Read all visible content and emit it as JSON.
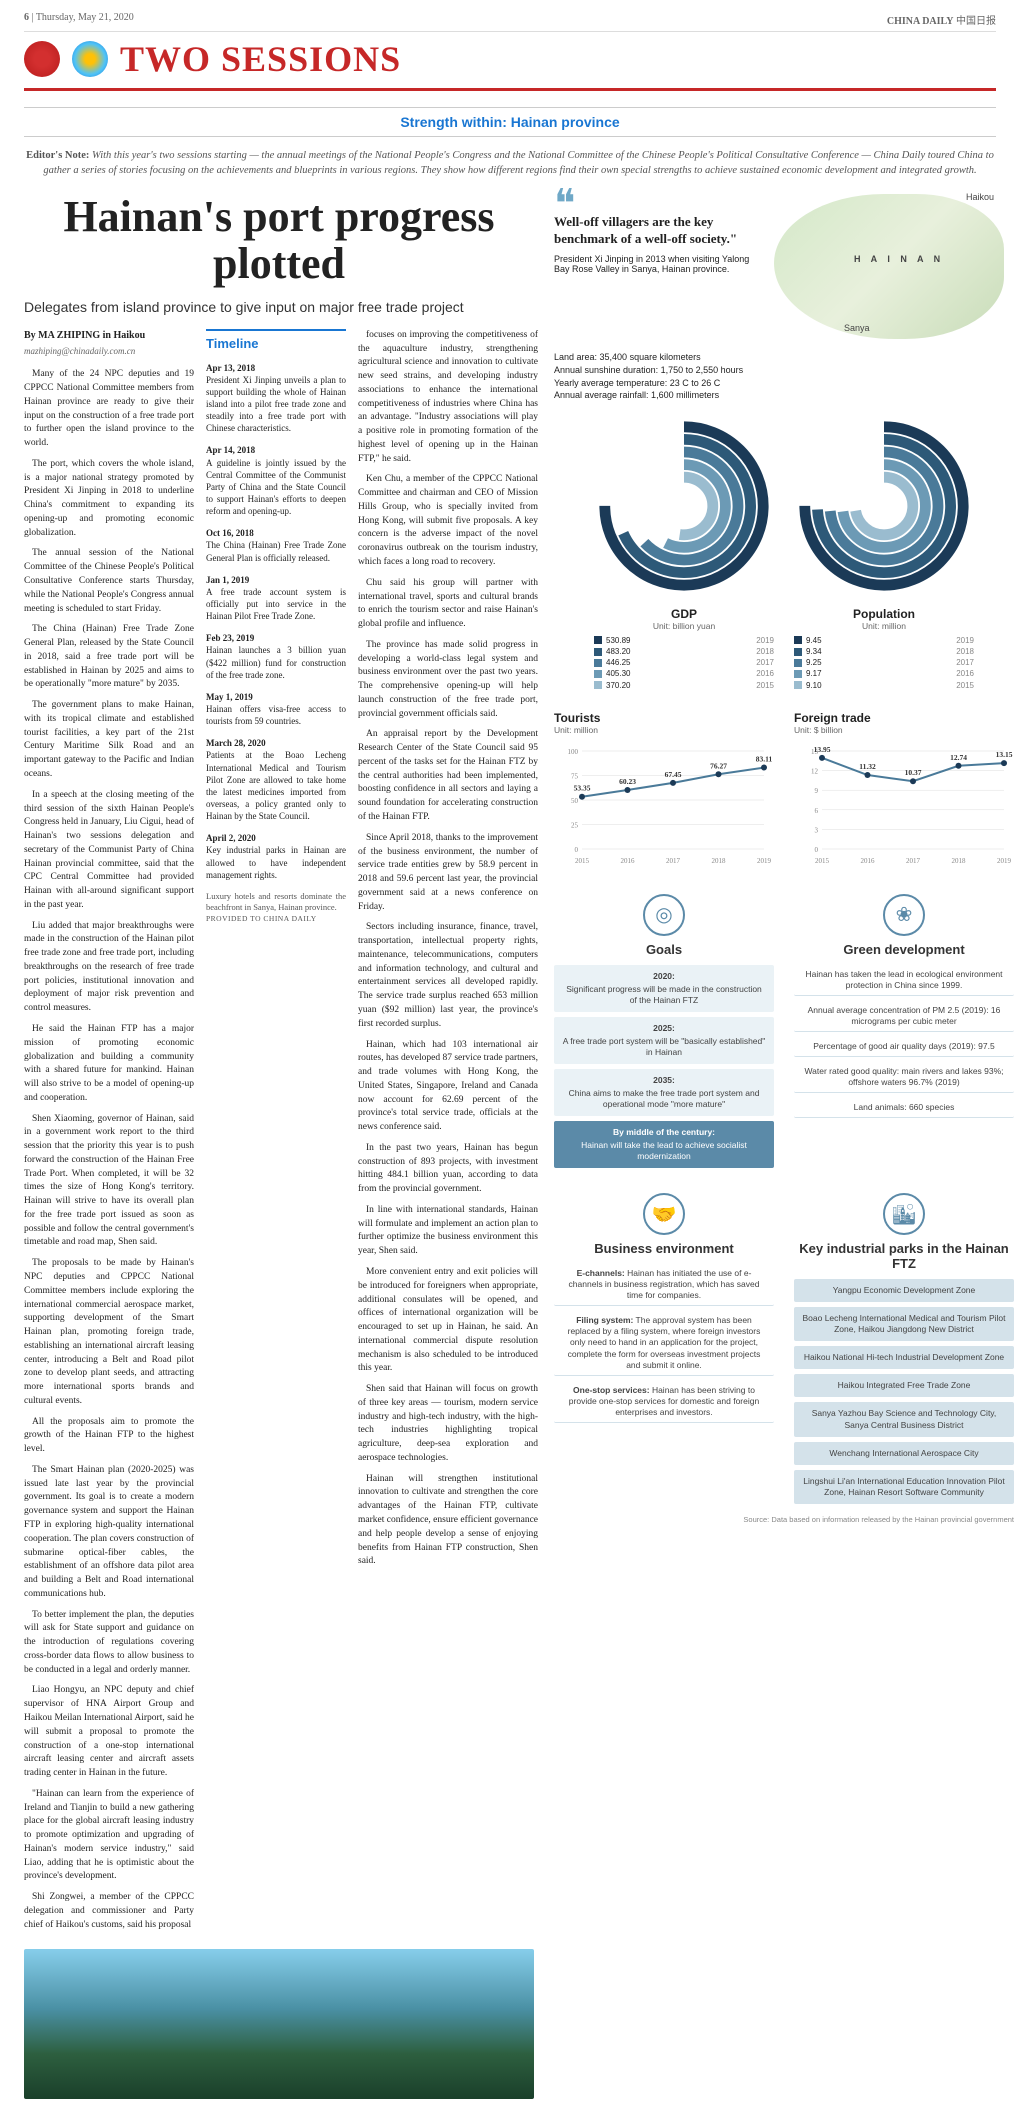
{
  "page_number": "6",
  "date": "Thursday, May 21, 2020",
  "publication": "CHINA DAILY",
  "pub_chinese": "中国日报",
  "section": "TWO SESSIONS",
  "kicker": "Strength within: Hainan province",
  "editors_note_label": "Editor's Note:",
  "editors_note": "With this year's two sessions starting — the annual meetings of the National People's Congress and the National Committee of the Chinese People's Political Consultative Conference — China Daily toured China to gather a series of stories focusing on the achievements and blueprints in various regions. They show how different regions find their own special strengths to achieve sustained economic development and integrated growth.",
  "headline": "Hainan's port progress plotted",
  "subhead": "Delegates from island province to give input on major free trade project",
  "byline": "By MA ZHIPING in Haikou",
  "byline_email": "mazhiping@chinadaily.com.cn",
  "body_col1": [
    "Many of the 24 NPC deputies and 19 CPPCC National Committee members from Hainan province are ready to give their input on the construction of a free trade port to further open the island province to the world.",
    "The port, which covers the whole island, is a major national strategy promoted by President Xi Jinping in 2018 to underline China's commitment to expanding its opening-up and promoting economic globalization.",
    "The annual session of the National Committee of the Chinese People's Political Consultative Conference starts Thursday, while the National People's Congress annual meeting is scheduled to start Friday.",
    "The China (Hainan) Free Trade Zone General Plan, released by the State Council in 2018, said a free trade port will be established in Hainan by 2025 and aims to be operationally \"more mature\" by 2035.",
    "The government plans to make Hainan, with its tropical climate and established tourist facilities, a key part of the 21st Century Maritime Silk Road and an important gateway to the Pacific and Indian oceans.",
    "In a speech at the closing meeting of the third session of the sixth Hainan People's Congress held in January, Liu Cigui, head of Hainan's two sessions delegation and secretary of the Communist Party of China Hainan provincial committee, said that the CPC Central Committee had provided Hainan with all-around significant support in the past year.",
    "Liu added that major breakthroughs were made in the construction of the Hainan pilot free trade zone and free trade port, including breakthroughs on the research of free trade port policies, institutional innovation and deployment of major risk prevention and control measures.",
    "He said the Hainan FTP has a major mission of promoting economic globalization and building a community with a shared future for mankind. Hainan will also strive to be a model of opening-up and cooperation.",
    "Shen Xiaoming, governor of Hainan, said in a government work report to the third session that the priority this year is to push forward the construction of the Hainan Free Trade Port. When completed, it will be 32 times the size of Hong Kong's territory. Hainan will strive to have its overall plan for the free trade port issued as soon as possible and follow the central government's timetable and road map, Shen said.",
    "The proposals to be made by Hainan's NPC deputies and CPPCC National Committee members include exploring the international commercial aerospace market, supporting development of the Smart Hainan plan, promoting foreign trade, establishing an international aircraft leasing center, introducing a Belt and Road pilot zone to develop plant seeds, and attracting more international sports brands and cultural events.",
    "All the proposals aim to promote the growth of the Hainan FTP to the highest level.",
    "The Smart Hainan plan (2020-2025) was issued late last year by the provincial government. Its goal is to create a modern governance system and support the Hainan FTP in exploring high-quality international cooperation. The plan covers construction of submarine optical-fiber cables, the establishment of an offshore data pilot area and building a Belt and Road international communications hub.",
    "To better implement the plan, the deputies will ask for State support and guidance on the introduction of regulations covering cross-border data flows to allow business to be conducted in a legal and orderly manner.",
    "Liao Hongyu, an NPC deputy and chief supervisor of HNA Airport Group and Haikou Meilan International Airport, said he will submit a proposal to promote the construction of a one-stop international aircraft leasing center and aircraft assets trading center in Hainan in the future.",
    "\"Hainan can learn from the experience of Ireland and Tianjin to build a new gathering place for the global aircraft leasing industry to promote optimization and upgrading of Hainan's modern service industry,\" said Liao, adding that he is optimistic about the province's development.",
    "Shi Zongwei, a member of the CPPCC delegation and commissioner and Party chief of Haikou's customs, said his proposal"
  ],
  "timeline_head": "Timeline",
  "timeline": [
    {
      "date": "Apr 13, 2018",
      "text": "President Xi Jinping unveils a plan to support building the whole of Hainan island into a pilot free trade zone and steadily into a free trade port with Chinese characteristics."
    },
    {
      "date": "Apr 14, 2018",
      "text": "A guideline is jointly issued by the Central Committee of the Communist Party of China and the State Council to support Hainan's efforts to deepen reform and opening-up."
    },
    {
      "date": "Oct 16, 2018",
      "text": "The China (Hainan) Free Trade Zone General Plan is officially released."
    },
    {
      "date": "Jan 1, 2019",
      "text": "A free trade account system is officially put into service in the Hainan Pilot Free Trade Zone."
    },
    {
      "date": "Feb 23, 2019",
      "text": "Hainan launches a 3 billion yuan ($422 million) fund for construction of the free trade zone."
    },
    {
      "date": "May 1, 2019",
      "text": "Hainan offers visa-free access to tourists from 59 countries."
    },
    {
      "date": "March 28, 2020",
      "text": "Patients at the Boao Lecheng International Medical and Tourism Pilot Zone are allowed to take home the latest medicines imported from overseas, a policy granted only to Hainan by the State Council."
    },
    {
      "date": "April 2, 2020",
      "text": "Key industrial parks in Hainan are allowed to have independent management rights."
    }
  ],
  "body_col3": [
    "focuses on improving the competitiveness of the aquaculture industry, strengthening agricultural science and innovation to cultivate new seed strains, and developing industry associations to enhance the international competitiveness of industries where China has an advantage. \"Industry associations will play a positive role in promoting formation of the highest level of opening up in the Hainan FTP,\" he said.",
    "Ken Chu, a member of the CPPCC National Committee and chairman and CEO of Mission Hills Group, who is specially invited from Hong Kong, will submit five proposals. A key concern is the adverse impact of the novel coronavirus outbreak on the tourism industry, which faces a long road to recovery.",
    "Chu said his group will partner with international travel, sports and cultural brands to enrich the tourism sector and raise Hainan's global profile and influence.",
    "The province has made solid progress in developing a world-class legal system and business environment over the past two years. The comprehensive opening-up will help launch construction of the free trade port, provincial government officials said.",
    "An appraisal report by the Development Research Center of the State Council said 95 percent of the tasks set for the Hainan FTZ by the central authorities had been implemented, boosting confidence in all sectors and laying a sound foundation for accelerating construction of the Hainan FTP.",
    "Since April 2018, thanks to the improvement of the business environment, the number of service trade entities grew by 58.9 percent in 2018 and 59.6 percent last year, the provincial government said at a news conference on Friday.",
    "Sectors including insurance, finance, travel, transportation, intellectual property rights, maintenance, telecommunications, computers and information technology, and cultural and entertainment services all developed rapidly. The service trade surplus reached 653 million yuan ($92 million) last year, the province's first recorded surplus.",
    "Hainan, which had 103 international air routes, has developed 87 service trade partners, and trade volumes with Hong Kong, the United States, Singapore, Ireland and Canada now account for 62.69 percent of the province's total service trade, officials at the news conference said.",
    "In the past two years, Hainan has begun construction of 893 projects, with investment hitting 484.1 billion yuan, according to data from the provincial government.",
    "In line with international standards, Hainan will formulate and implement an action plan to further optimize the business environment this year, Shen said.",
    "More convenient entry and exit policies will be introduced for foreigners when appropriate, additional consulates will be opened, and offices of international organization will be encouraged to set up in Hainan, he said. An international commercial dispute resolution mechanism is also scheduled to be introduced this year.",
    "Shen said that Hainan will focus on growth of three key areas — tourism, modern service industry and high-tech industry, with the high-tech industries highlighting tropical agriculture, deep-sea exploration and aerospace technologies.",
    "Hainan will strengthen institutional innovation to cultivate and strengthen the core advantages of the Hainan FTP, cultivate market confidence, ensure efficient governance and help people develop a sense of enjoying benefits from Hainan FTP construction, Shen said."
  ],
  "photo_caption": "Luxury hotels and resorts dominate the beachfront in Sanya, Hainan province.",
  "photo_credit": "PROVIDED TO CHINA DAILY",
  "quote": {
    "text": "Well-off villagers are the key benchmark of a well-off society.\"",
    "attr": "President Xi Jinping in 2013 when visiting Yalong Bay Rose Valley in Sanya, Hainan province."
  },
  "map": {
    "city1": "Haikou",
    "region": "H A I N A N",
    "city2": "Sanya"
  },
  "map_stats": [
    "Land area: 35,400 square kilometers",
    "Annual sunshine duration: 1,750 to 2,550 hours",
    "Yearly average temperature: 23 C to 26 C",
    "Annual average rainfall: 1,600 millimeters"
  ],
  "gdp": {
    "title": "GDP",
    "unit": "Unit: billion yuan",
    "years": [
      "2019",
      "2018",
      "2017",
      "2016",
      "2015"
    ],
    "values": [
      "530.89",
      "483.20",
      "446.25",
      "405.30",
      "370.20"
    ],
    "colors": [
      "#1b3a57",
      "#2d5978",
      "#4a7a99",
      "#6c9ab5",
      "#9abccf"
    ]
  },
  "pop": {
    "title": "Population",
    "unit": "Unit: million",
    "years": [
      "2019",
      "2018",
      "2017",
      "2016",
      "2015"
    ],
    "values": [
      "9.45",
      "9.34",
      "9.25",
      "9.17",
      "9.10"
    ],
    "colors": [
      "#1b3a57",
      "#2d5978",
      "#4a7a99",
      "#6c9ab5",
      "#9abccf"
    ]
  },
  "tourists": {
    "title": "Tourists",
    "unit": "Unit: million",
    "x": [
      "2015",
      "2016",
      "2017",
      "2018",
      "2019"
    ],
    "y": [
      53.35,
      60.23,
      67.45,
      76.27,
      83.11
    ],
    "ymax": 100,
    "ystep": 25,
    "line_color": "#4a7a99",
    "point_color": "#1b3a57"
  },
  "trade": {
    "title": "Foreign trade",
    "unit": "Unit: $ billion",
    "x": [
      "2015",
      "2016",
      "2017",
      "2018",
      "2019"
    ],
    "y": [
      13.95,
      11.32,
      10.37,
      12.74,
      13.15
    ],
    "ymax": 15,
    "ystep": 3,
    "line_color": "#4a7a99",
    "point_color": "#1b3a57"
  },
  "goals": {
    "title": "Goals",
    "items": [
      {
        "b": "2020:",
        "t": "Significant progress will be made in the construction of the Hainan FTZ"
      },
      {
        "b": "2025:",
        "t": "A free trade port system will be \"basically established\" in Hainan"
      },
      {
        "b": "2035:",
        "t": "China aims to make the free trade port system and operational mode \"more mature\""
      },
      {
        "b": "By middle of the century:",
        "t": "Hainan will take the lead to achieve socialist modernization"
      }
    ]
  },
  "green": {
    "title": "Green development",
    "items": [
      "Hainan has taken the lead in ecological environment protection in China since 1999.",
      "Annual average concentration of PM 2.5 (2019): 16 micrograms per cubic meter",
      "Percentage of good air quality days (2019): 97.5",
      "Water rated good quality: main rivers and lakes 93%; offshore waters 96.7% (2019)",
      "Land animals: 660 species"
    ]
  },
  "biz": {
    "title": "Business environment",
    "items": [
      {
        "b": "E-channels:",
        "t": "Hainan has initiated the use of e-channels in business registration, which has saved time for companies."
      },
      {
        "b": "Filing system:",
        "t": "The approval system has been replaced by a filing system, where foreign investors only need to hand in an application for the project, complete the form for overseas investment projects and submit it online."
      },
      {
        "b": "One-stop services:",
        "t": "Hainan has been striving to provide one-stop services for domestic and foreign enterprises and investors."
      }
    ]
  },
  "parks": {
    "title": "Key industrial parks in the Hainan FTZ",
    "items": [
      "Yangpu Economic Development Zone",
      "Boao Lecheng International Medical and Tourism Pilot Zone, Haikou Jiangdong New District",
      "Haikou National Hi-tech Industrial Development Zone",
      "Haikou Integrated Free Trade Zone",
      "Sanya Yazhou Bay Science and Technology City, Sanya Central Business District",
      "Wenchang International Aerospace City",
      "Lingshui Li'an International Education Innovation Pilot Zone, Hainan Resort Software Community"
    ]
  },
  "source": "Source: Data based on information released by the Hainan provincial government"
}
